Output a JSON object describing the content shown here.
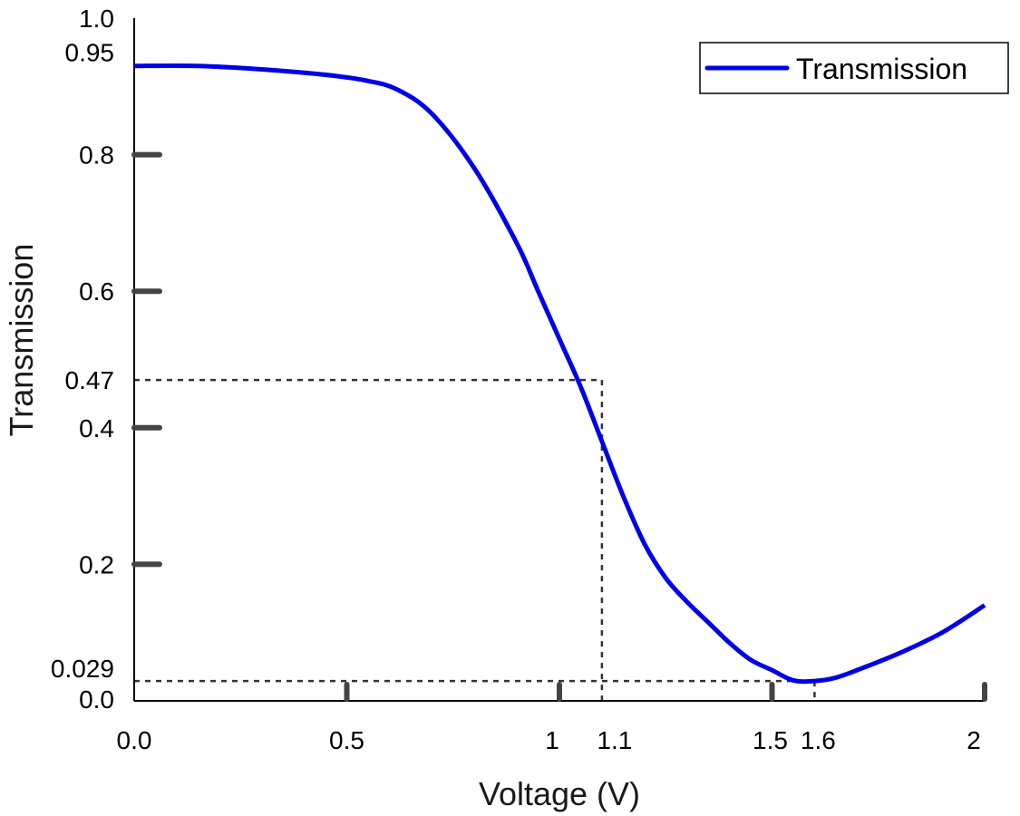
{
  "chart_data": {
    "type": "line",
    "xlabel": "Voltage (V)",
    "ylabel": "Transmission",
    "xlim": [
      0,
      2
    ],
    "ylim": [
      0,
      1
    ],
    "x_ticks": [
      {
        "value": 0,
        "label": "0.0"
      },
      {
        "value": 0.5,
        "label": "0.5"
      },
      {
        "value": 1,
        "label": "1"
      },
      {
        "value": 1.1,
        "label": "1.1"
      },
      {
        "value": 1.5,
        "label": "1.5"
      },
      {
        "value": 1.6,
        "label": "1.6"
      },
      {
        "value": 2,
        "label": "2"
      }
    ],
    "y_ticks": [
      {
        "value": 0,
        "label": "0.0"
      },
      {
        "value": 0.029,
        "label": "0.029"
      },
      {
        "value": 0.2,
        "label": "0.2"
      },
      {
        "value": 0.4,
        "label": "0.4"
      },
      {
        "value": 0.47,
        "label": "0.47"
      },
      {
        "value": 0.6,
        "label": "0.6"
      },
      {
        "value": 0.8,
        "label": "0.8"
      },
      {
        "value": 0.95,
        "label": "0.95"
      },
      {
        "value": 1,
        "label": "1.0"
      }
    ],
    "legend": {
      "position": "top-right"
    },
    "series": [
      {
        "name": "Transmission",
        "color": "#0000e6",
        "x": [
          0,
          0.15,
          0.3,
          0.45,
          0.55,
          0.62,
          0.7,
          0.8,
          0.9,
          0.95,
          1.0,
          1.05,
          1.1,
          1.15,
          1.2,
          1.25,
          1.3,
          1.35,
          1.4,
          1.45,
          1.5,
          1.55,
          1.6,
          1.65,
          1.7,
          1.8,
          1.9,
          2.0
        ],
        "y": [
          0.93,
          0.93,
          0.925,
          0.917,
          0.908,
          0.895,
          0.86,
          0.78,
          0.67,
          0.6,
          0.53,
          0.46,
          0.38,
          0.3,
          0.23,
          0.18,
          0.145,
          0.115,
          0.085,
          0.06,
          0.045,
          0.03,
          0.029,
          0.034,
          0.045,
          0.07,
          0.1,
          0.14
        ]
      }
    ],
    "reference_lines": [
      {
        "x": 1.1,
        "y": 0.47
      },
      {
        "x": 1.6,
        "y": 0.029
      }
    ]
  }
}
